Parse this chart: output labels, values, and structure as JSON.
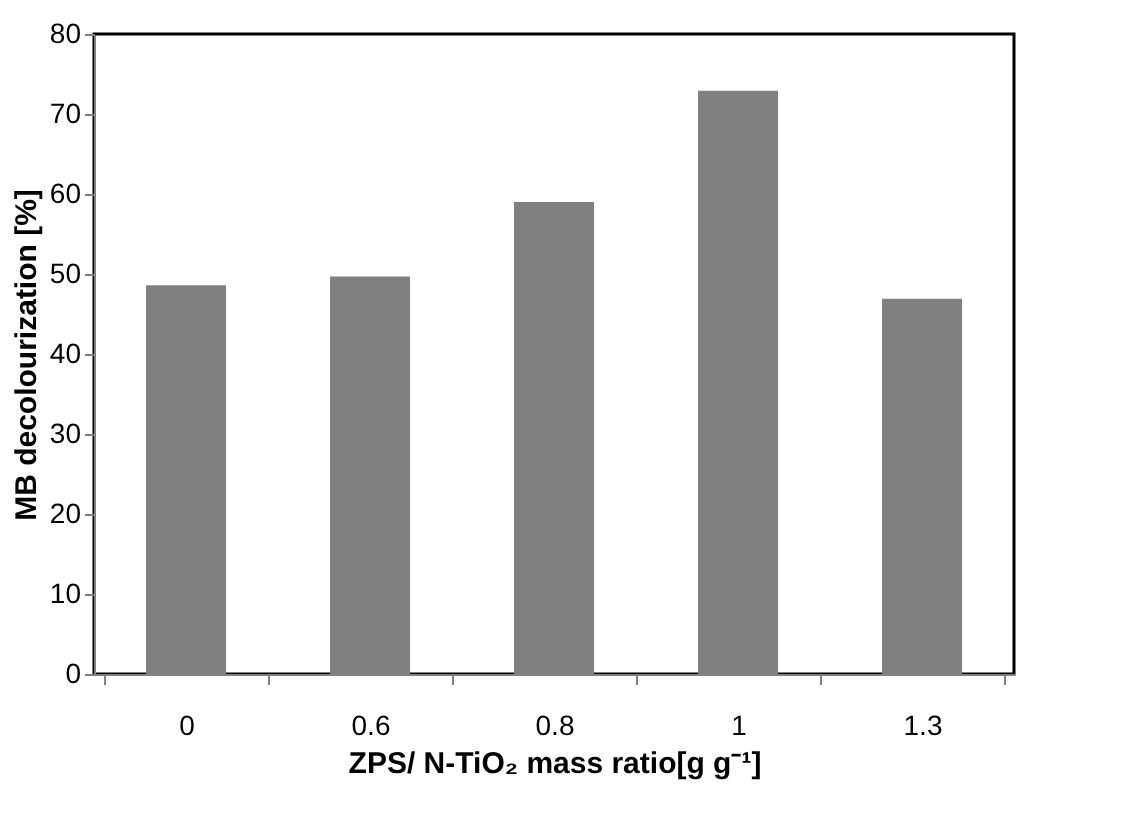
{
  "chart_data": {
    "type": "bar",
    "xlabel": "ZPS/ N-TiO₂ mass ratio[g g⁻¹]",
    "ylabel": "MB decolourization [%]",
    "categories": [
      "0",
      "0.6",
      "0.8",
      "1",
      "1.3"
    ],
    "values": [
      48.6,
      49.7,
      59.0,
      72.9,
      46.9
    ],
    "color": "#808080",
    "ylim": [
      0,
      80
    ],
    "yticks": [
      0,
      10,
      20,
      30,
      40,
      50,
      60,
      70,
      80
    ],
    "grid": false
  }
}
